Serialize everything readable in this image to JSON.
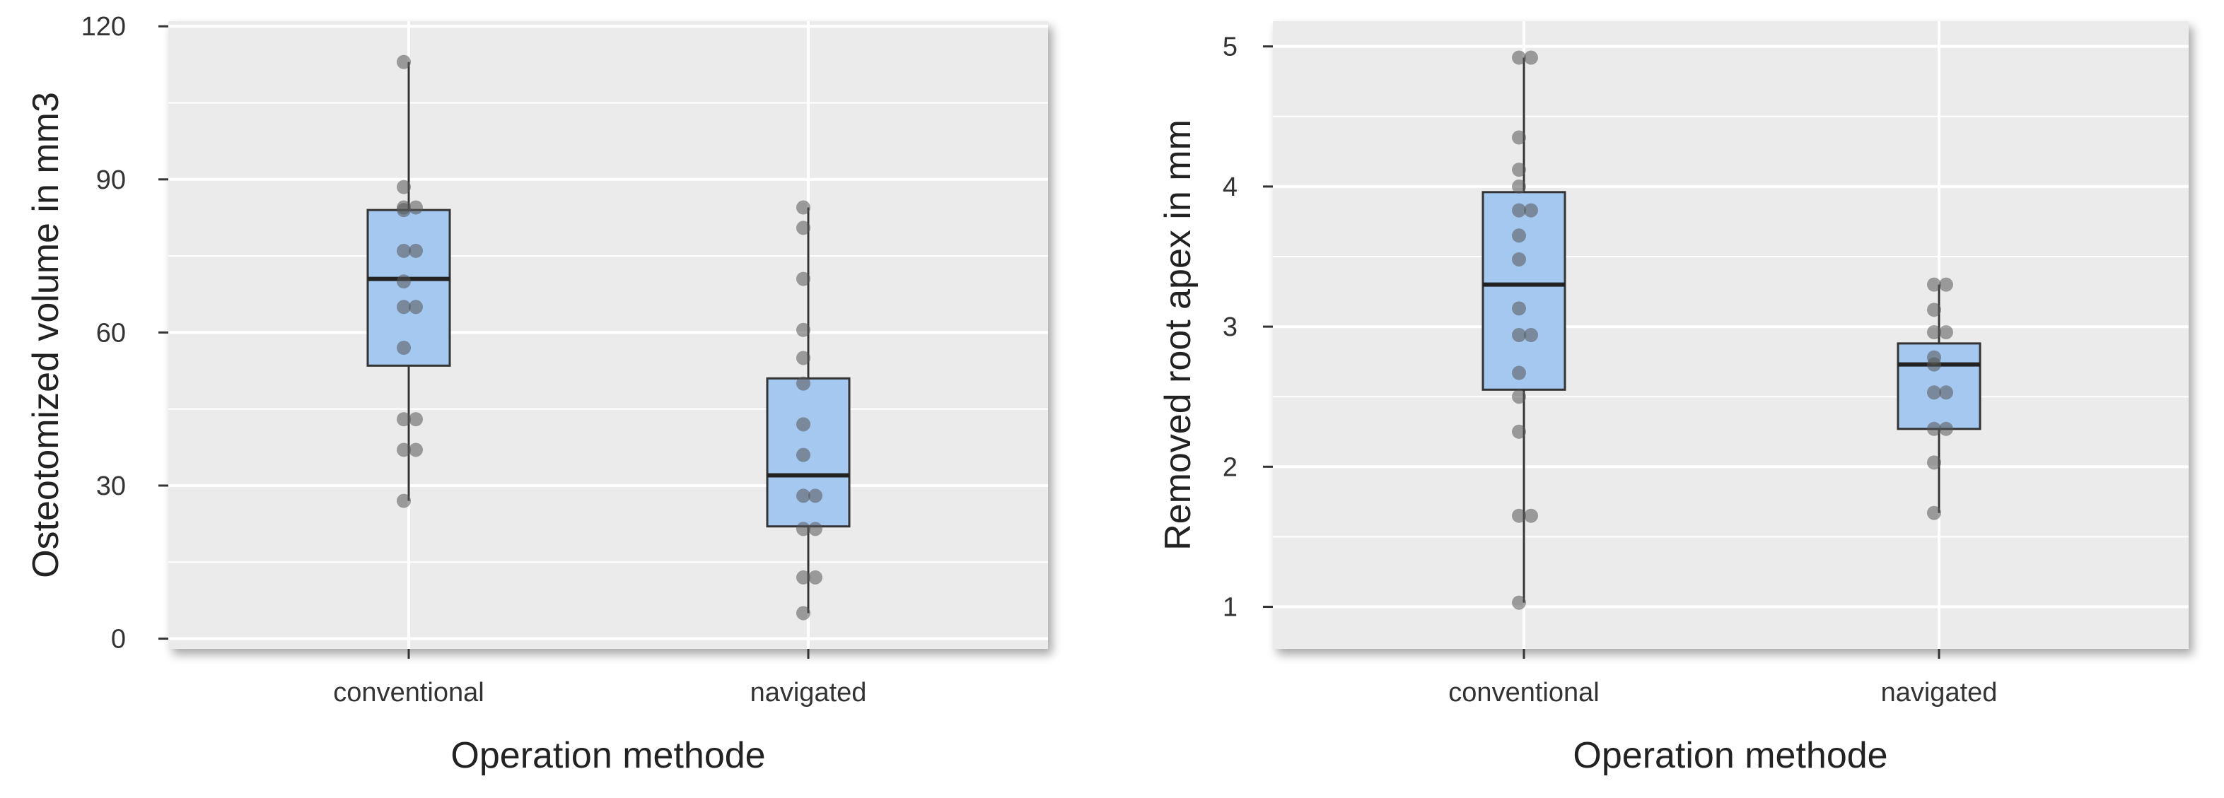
{
  "chart_data": [
    {
      "type": "box",
      "xlabel": "Operation methode",
      "ylabel": "Osteotomized volume in mm3",
      "categories": [
        "conventional",
        "navigated"
      ],
      "yticks": [
        0,
        30,
        60,
        90,
        120
      ],
      "ylim": [
        -2,
        121
      ],
      "grid": true,
      "box_color": "#a4c8f0",
      "point_color": "#555555",
      "boxes": [
        {
          "category": "conventional",
          "whisker_low": 27,
          "q1": 53.5,
          "median": 70.5,
          "q3": 84,
          "whisker_high": 113,
          "points": [
            113,
            88.5,
            84.5,
            84.5,
            84,
            76,
            76,
            70,
            65,
            65,
            57,
            43,
            43,
            37,
            37,
            27
          ]
        },
        {
          "category": "navigated",
          "whisker_low": 5,
          "q1": 22,
          "median": 32,
          "q3": 51,
          "whisker_high": 84.5,
          "points": [
            84.5,
            80.5,
            70.5,
            60.5,
            55,
            50,
            42,
            36,
            28,
            28,
            21.5,
            21.5,
            12,
            12,
            5
          ]
        }
      ]
    },
    {
      "type": "box",
      "xlabel": "Operation methode",
      "ylabel": "Removed root apex in mm",
      "categories": [
        "conventional",
        "navigated"
      ],
      "yticks": [
        1,
        2,
        3,
        4,
        5
      ],
      "ylim": [
        0.7,
        5.18
      ],
      "grid": true,
      "box_color": "#a4c8f0",
      "point_color": "#555555",
      "boxes": [
        {
          "category": "conventional",
          "whisker_low": 1.03,
          "q1": 2.55,
          "median": 3.3,
          "q3": 3.96,
          "whisker_high": 4.92,
          "points": [
            4.92,
            4.92,
            4.35,
            4.12,
            4.0,
            3.83,
            3.83,
            3.65,
            3.48,
            3.13,
            2.94,
            2.94,
            2.67,
            2.5,
            2.25,
            1.65,
            1.65,
            1.03
          ]
        },
        {
          "category": "navigated",
          "whisker_low": 1.67,
          "q1": 2.27,
          "median": 2.73,
          "q3": 2.88,
          "whisker_high": 3.3,
          "points": [
            3.3,
            3.3,
            3.12,
            2.96,
            2.96,
            2.78,
            2.73,
            2.53,
            2.53,
            2.27,
            2.27,
            2.03,
            1.67
          ]
        }
      ]
    }
  ]
}
